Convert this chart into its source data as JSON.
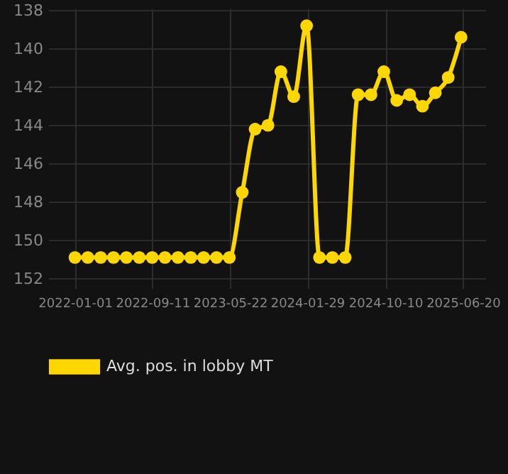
{
  "chart_data": {
    "type": "line",
    "x": [
      "2022-01-01",
      "2022-02-12",
      "2022-03-26",
      "2022-05-07",
      "2022-06-18",
      "2022-07-30",
      "2022-09-10",
      "2022-10-22",
      "2022-12-03",
      "2023-01-14",
      "2023-02-25",
      "2023-04-08",
      "2023-05-20",
      "2023-07-01",
      "2023-08-12",
      "2023-09-23",
      "2023-11-04",
      "2023-12-16",
      "2024-01-27",
      "2024-03-09",
      "2024-04-20",
      "2024-06-01",
      "2024-07-13",
      "2024-08-24",
      "2024-10-05",
      "2024-11-16",
      "2024-12-28",
      "2025-02-08",
      "2025-03-22",
      "2025-05-03",
      "2025-06-14"
    ],
    "series": [
      {
        "name": "Avg. pos. in lobby MT",
        "color": "#ffd700",
        "values": [
          150.9,
          150.9,
          150.9,
          150.9,
          150.9,
          150.9,
          150.9,
          150.9,
          150.9,
          150.9,
          150.9,
          150.9,
          150.9,
          147.5,
          144.2,
          144.0,
          141.2,
          142.5,
          138.8,
          150.9,
          150.9,
          150.9,
          142.4,
          142.4,
          141.2,
          142.7,
          142.4,
          143.0,
          142.3,
          141.5,
          139.4
        ]
      }
    ],
    "ylim": [
      152.5,
      137.9
    ],
    "yticks": [
      138,
      140,
      142,
      144,
      146,
      148,
      150,
      152
    ],
    "xlim": [
      "2021-10-06",
      "2025-09-01"
    ],
    "xticks": [
      "2022-01-01",
      "2022-09-11",
      "2023-05-22",
      "2024-01-29",
      "2024-10-10",
      "2025-06-20"
    ],
    "grid": true,
    "legend": "bottom",
    "marker": "circle",
    "line_style": "solid"
  }
}
